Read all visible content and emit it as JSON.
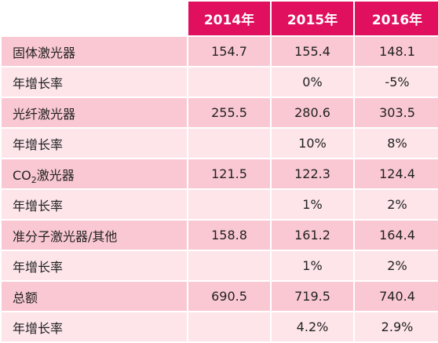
{
  "table": {
    "headers": [
      "2014年",
      "2015年",
      "2016年"
    ],
    "rows": [
      {
        "label": "固体激光器",
        "values": [
          "154.7",
          "155.4",
          "148.1"
        ]
      },
      {
        "label": "年增长率",
        "values": [
          "",
          "0%",
          "-5%"
        ]
      },
      {
        "label": "光纤激光器",
        "values": [
          "255.5",
          "280.6",
          "303.5"
        ]
      },
      {
        "label": "年增长率",
        "values": [
          "",
          "10%",
          "8%"
        ]
      },
      {
        "label_prefix": "CO",
        "label_sub": "2",
        "label_suffix": "激光器",
        "values": [
          "121.5",
          "122.3",
          "124.4"
        ]
      },
      {
        "label": "年增长率",
        "values": [
          "",
          "1%",
          "2%"
        ]
      },
      {
        "label": "准分子激光器/其他",
        "values": [
          "158.8",
          "161.2",
          "164.4"
        ]
      },
      {
        "label": "年增长率",
        "values": [
          "",
          "1%",
          "2%"
        ]
      },
      {
        "label": "总额",
        "values": [
          "690.5",
          "719.5",
          "740.4"
        ]
      },
      {
        "label": "年增长率",
        "values": [
          "",
          "4.2%",
          "2.9%"
        ]
      }
    ]
  },
  "colors": {
    "header_bg": "#e0105f",
    "row_odd_bg": "#fac8d3",
    "row_even_bg": "#fde5ea"
  }
}
